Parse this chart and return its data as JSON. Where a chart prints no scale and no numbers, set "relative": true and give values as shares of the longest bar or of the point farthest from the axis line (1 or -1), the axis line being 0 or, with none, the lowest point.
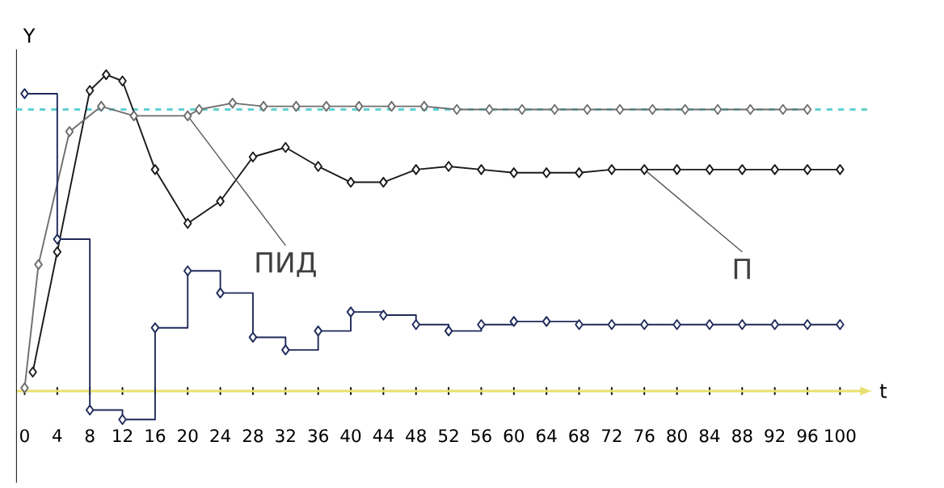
{
  "chart_data": {
    "type": "line",
    "relative": true,
    "xlabel": "t",
    "ylabel": "Y",
    "xlim": [
      -1,
      104
    ],
    "xticks": [
      0,
      4,
      8,
      12,
      16,
      20,
      24,
      28,
      32,
      36,
      40,
      44,
      48,
      52,
      56,
      60,
      64,
      68,
      72,
      76,
      80,
      84,
      88,
      92,
      96,
      100
    ],
    "tick_labels": "x",
    "grid": false,
    "marker": "diamond",
    "line_style": "solid",
    "series": [
      {
        "name": "П",
        "color": "#1a1a1a",
        "x": [
          1,
          4,
          8,
          10,
          12,
          16,
          20,
          24,
          28,
          32,
          36,
          40,
          44,
          48,
          52,
          56,
          60,
          64,
          68,
          72,
          76,
          80,
          84,
          88,
          92,
          96,
          100
        ],
        "values": [
          0.06,
          0.44,
          0.95,
          1.0,
          0.98,
          0.7,
          0.53,
          0.6,
          0.74,
          0.77,
          0.71,
          0.66,
          0.66,
          0.7,
          0.71,
          0.7,
          0.69,
          0.69,
          0.69,
          0.7,
          0.7,
          0.7,
          0.7,
          0.7,
          0.7,
          0.7,
          0.7
        ]
      },
      {
        "name": "ПИД",
        "color": "#6e6e6e",
        "x": [
          0,
          1.7,
          5.5,
          9.4,
          13.4,
          20,
          21.4,
          25.5,
          29.3,
          33.3,
          37,
          41,
          45,
          49,
          53,
          57,
          61,
          65,
          69,
          73,
          77,
          81,
          85,
          89,
          93,
          96
        ],
        "values": [
          0.01,
          0.4,
          0.82,
          0.9,
          0.87,
          0.87,
          0.89,
          0.91,
          0.9,
          0.9,
          0.9,
          0.9,
          0.9,
          0.9,
          0.89,
          0.89,
          0.89,
          0.89,
          0.89,
          0.89,
          0.89,
          0.89,
          0.89,
          0.89,
          0.89,
          0.89
        ]
      },
      {
        "type": "step",
        "color": "#1f2a5a",
        "x": [
          0,
          4,
          8,
          12,
          16,
          20,
          24,
          28,
          32,
          36,
          40,
          44,
          48,
          52,
          56,
          60,
          64,
          68,
          72,
          76,
          80,
          84,
          88,
          92,
          96,
          100
        ],
        "values": [
          0.94,
          0.48,
          -0.06,
          -0.09,
          0.2,
          0.38,
          0.31,
          0.17,
          0.13,
          0.19,
          0.25,
          0.24,
          0.21,
          0.19,
          0.21,
          0.22,
          0.22,
          0.21,
          0.21,
          0.21,
          0.21,
          0.21,
          0.21,
          0.21,
          0.21,
          0.21
        ]
      }
    ],
    "ref_lines": [
      {
        "axis": "y",
        "value": 0.89,
        "color": "#5fd0d0",
        "line_style": "dashed"
      }
    ]
  }
}
